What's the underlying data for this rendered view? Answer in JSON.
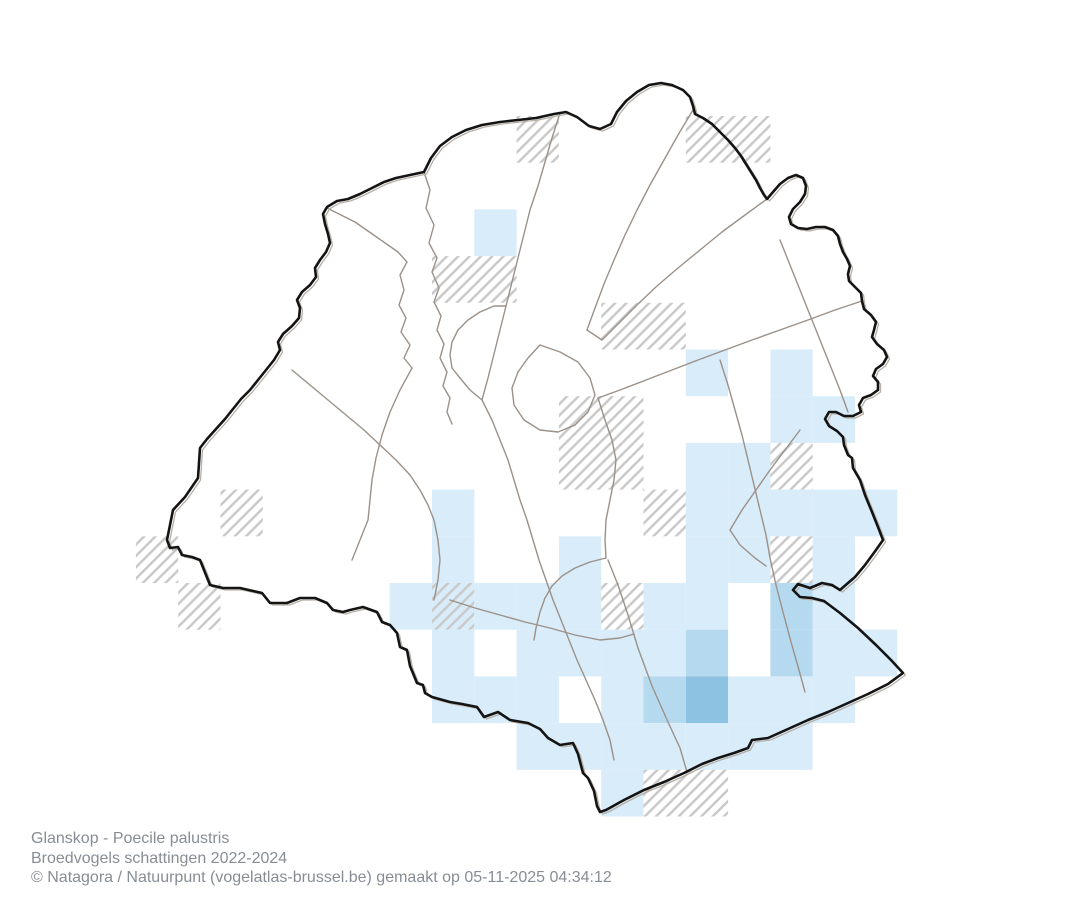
{
  "caption": {
    "line1": "Glanskop - Poecile palustris",
    "line2": "Broedvogels schattingen 2022-2024",
    "line3": "© Natagora / Natuurpunt (vogelatlas-brussel.be) gemaakt op 05-11-2025 04:34:12",
    "text_color": "#878d95"
  },
  "map": {
    "colors": {
      "background": "#ffffff",
      "estimate_light": "#d9ecf9",
      "estimate_medium": "#b5daf0",
      "estimate_dark": "#8dc2e2",
      "hatch_line": "#c9c9c9",
      "region_outline": "#141414",
      "region_outline_shadow": "#b6afa6",
      "municipal_line": "#9b9189"
    },
    "grid": {
      "cell_types": {
        "h": "hatched-no-estimate",
        "b1": "estimate-light",
        "b2": "estimate-medium",
        "b3": "estimate-dark",
        "b1h": "estimate-light-with-hatch"
      },
      "cells": [
        {
          "c": 9,
          "r": 1,
          "t": "h"
        },
        {
          "c": 13,
          "r": 1,
          "t": "h"
        },
        {
          "c": 14,
          "r": 1,
          "t": "h"
        },
        {
          "c": 8,
          "r": 3,
          "t": "b1"
        },
        {
          "c": 7,
          "r": 4,
          "t": "h"
        },
        {
          "c": 8,
          "r": 4,
          "t": "h"
        },
        {
          "c": 11,
          "r": 5,
          "t": "h"
        },
        {
          "c": 12,
          "r": 5,
          "t": "h"
        },
        {
          "c": 13,
          "r": 6,
          "t": "b1"
        },
        {
          "c": 15,
          "r": 6,
          "t": "b1"
        },
        {
          "c": 10,
          "r": 7,
          "t": "h"
        },
        {
          "c": 11,
          "r": 7,
          "t": "h"
        },
        {
          "c": 15,
          "r": 7,
          "t": "b1"
        },
        {
          "c": 16,
          "r": 7,
          "t": "b1"
        },
        {
          "c": 10,
          "r": 8,
          "t": "h"
        },
        {
          "c": 11,
          "r": 8,
          "t": "h"
        },
        {
          "c": 13,
          "r": 8,
          "t": "b1"
        },
        {
          "c": 14,
          "r": 8,
          "t": "b1"
        },
        {
          "c": 15,
          "r": 8,
          "t": "h"
        },
        {
          "c": 2,
          "r": 9,
          "t": "h"
        },
        {
          "c": 7,
          "r": 9,
          "t": "b1"
        },
        {
          "c": 12,
          "r": 9,
          "t": "h"
        },
        {
          "c": 13,
          "r": 9,
          "t": "b1"
        },
        {
          "c": 14,
          "r": 9,
          "t": "b1"
        },
        {
          "c": 15,
          "r": 9,
          "t": "b1"
        },
        {
          "c": 16,
          "r": 9,
          "t": "b1"
        },
        {
          "c": 17,
          "r": 9,
          "t": "b1"
        },
        {
          "c": 0,
          "r": 10,
          "t": "h"
        },
        {
          "c": 7,
          "r": 10,
          "t": "b1"
        },
        {
          "c": 10,
          "r": 10,
          "t": "b1"
        },
        {
          "c": 13,
          "r": 10,
          "t": "b1"
        },
        {
          "c": 14,
          "r": 10,
          "t": "b1"
        },
        {
          "c": 15,
          "r": 10,
          "t": "h"
        },
        {
          "c": 16,
          "r": 10,
          "t": "b1"
        },
        {
          "c": 1,
          "r": 11,
          "t": "h"
        },
        {
          "c": 6,
          "r": 11,
          "t": "b1"
        },
        {
          "c": 7,
          "r": 11,
          "t": "b1h"
        },
        {
          "c": 8,
          "r": 11,
          "t": "b1"
        },
        {
          "c": 9,
          "r": 11,
          "t": "b1"
        },
        {
          "c": 10,
          "r": 11,
          "t": "b1"
        },
        {
          "c": 11,
          "r": 11,
          "t": "h"
        },
        {
          "c": 12,
          "r": 11,
          "t": "b1"
        },
        {
          "c": 13,
          "r": 11,
          "t": "b1"
        },
        {
          "c": 15,
          "r": 11,
          "t": "b2"
        },
        {
          "c": 16,
          "r": 11,
          "t": "b1"
        },
        {
          "c": 7,
          "r": 12,
          "t": "b1"
        },
        {
          "c": 9,
          "r": 12,
          "t": "b1"
        },
        {
          "c": 10,
          "r": 12,
          "t": "b1"
        },
        {
          "c": 11,
          "r": 12,
          "t": "b1"
        },
        {
          "c": 12,
          "r": 12,
          "t": "b1"
        },
        {
          "c": 13,
          "r": 12,
          "t": "b2"
        },
        {
          "c": 15,
          "r": 12,
          "t": "b2"
        },
        {
          "c": 16,
          "r": 12,
          "t": "b1"
        },
        {
          "c": 17,
          "r": 12,
          "t": "b1"
        },
        {
          "c": 7,
          "r": 13,
          "t": "b1"
        },
        {
          "c": 8,
          "r": 13,
          "t": "b1"
        },
        {
          "c": 9,
          "r": 13,
          "t": "b1"
        },
        {
          "c": 11,
          "r": 13,
          "t": "b1"
        },
        {
          "c": 12,
          "r": 13,
          "t": "b2"
        },
        {
          "c": 13,
          "r": 13,
          "t": "b3"
        },
        {
          "c": 14,
          "r": 13,
          "t": "b1"
        },
        {
          "c": 15,
          "r": 13,
          "t": "b1"
        },
        {
          "c": 16,
          "r": 13,
          "t": "b1"
        },
        {
          "c": 9,
          "r": 14,
          "t": "b1"
        },
        {
          "c": 10,
          "r": 14,
          "t": "b1"
        },
        {
          "c": 11,
          "r": 14,
          "t": "b1"
        },
        {
          "c": 12,
          "r": 14,
          "t": "b1"
        },
        {
          "c": 13,
          "r": 14,
          "t": "b1"
        },
        {
          "c": 14,
          "r": 14,
          "t": "b1"
        },
        {
          "c": 15,
          "r": 14,
          "t": "b1"
        },
        {
          "c": 11,
          "r": 15,
          "t": "b1"
        },
        {
          "c": 12,
          "r": 15,
          "t": "h"
        },
        {
          "c": 13,
          "r": 15,
          "t": "h"
        }
      ]
    }
  }
}
